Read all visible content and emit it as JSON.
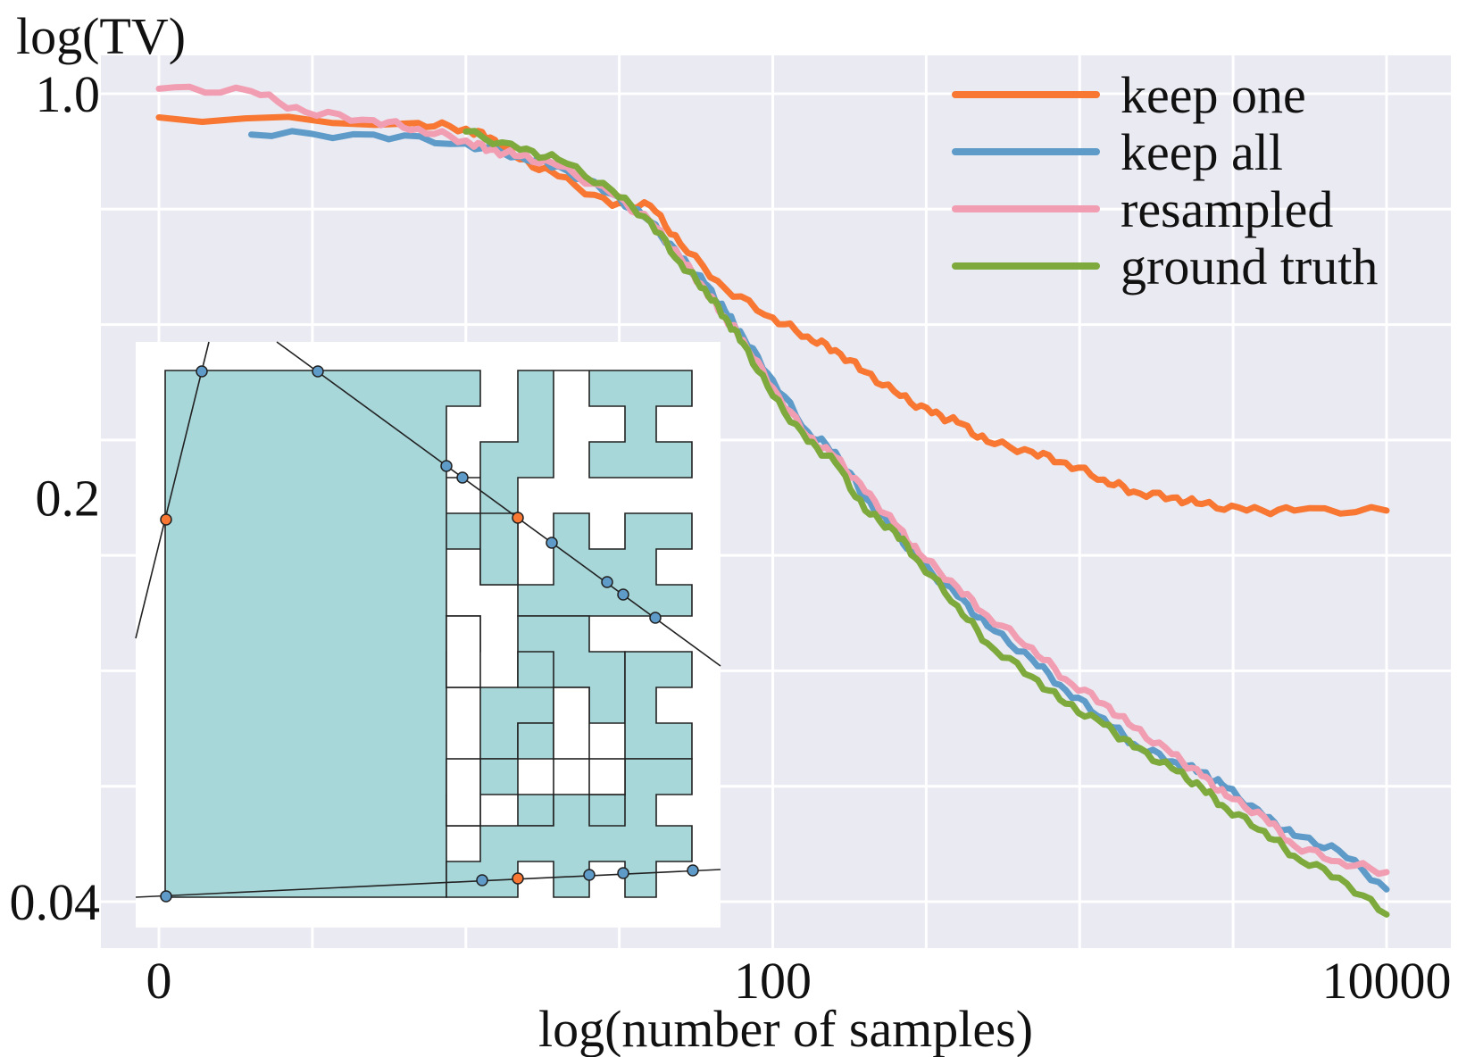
{
  "chart_data": {
    "type": "line",
    "ylabel": "log(TV)",
    "xlabel": "log(number of samples)",
    "x_scale": "log",
    "y_scale": "log",
    "xlim": [
      1,
      10000
    ],
    "ylim": [
      0.033,
      1.25
    ],
    "x_ticks": [
      {
        "value": 1,
        "label": "0"
      },
      {
        "value": 100,
        "label": "100"
      },
      {
        "value": 10000,
        "label": "10000"
      }
    ],
    "y_ticks": [
      {
        "value": 1.0,
        "label": "1.0"
      },
      {
        "value": 0.2,
        "label": "0.2"
      },
      {
        "value": 0.04,
        "label": "0.04"
      }
    ],
    "legend_position": "top-right",
    "series": [
      {
        "name": "keep one",
        "color": "#f77733",
        "points": [
          [
            1,
            0.91
          ],
          [
            7,
            0.89
          ],
          [
            10,
            0.87
          ],
          [
            12,
            0.84
          ],
          [
            15,
            0.77
          ],
          [
            20,
            0.72
          ],
          [
            30,
            0.64
          ],
          [
            40,
            0.64
          ],
          [
            50,
            0.55
          ],
          [
            70,
            0.46
          ],
          [
            100,
            0.41
          ],
          [
            130,
            0.38
          ],
          [
            160,
            0.36
          ],
          [
            200,
            0.33
          ],
          [
            260,
            0.3
          ],
          [
            330,
            0.28
          ],
          [
            400,
            0.27
          ],
          [
            500,
            0.25
          ],
          [
            700,
            0.24
          ],
          [
            900,
            0.23
          ],
          [
            1200,
            0.215
          ],
          [
            1500,
            0.205
          ],
          [
            2000,
            0.2
          ],
          [
            2500,
            0.195
          ],
          [
            3500,
            0.19
          ],
          [
            5000,
            0.19
          ],
          [
            10000,
            0.19
          ]
        ]
      },
      {
        "name": "keep all",
        "color": "#5e9bc9",
        "points": [
          [
            2,
            0.85
          ],
          [
            5,
            0.85
          ],
          [
            10,
            0.82
          ],
          [
            15,
            0.78
          ],
          [
            20,
            0.75
          ],
          [
            30,
            0.67
          ],
          [
            40,
            0.6
          ],
          [
            50,
            0.52
          ],
          [
            60,
            0.47
          ],
          [
            70,
            0.42
          ],
          [
            80,
            0.38
          ],
          [
            100,
            0.32
          ],
          [
            130,
            0.26
          ],
          [
            160,
            0.24
          ],
          [
            200,
            0.2
          ],
          [
            250,
            0.175
          ],
          [
            300,
            0.155
          ],
          [
            400,
            0.135
          ],
          [
            500,
            0.12
          ],
          [
            700,
            0.105
          ],
          [
            900,
            0.093
          ],
          [
            1200,
            0.083
          ],
          [
            1500,
            0.075
          ],
          [
            2000,
            0.07
          ],
          [
            2500,
            0.067
          ],
          [
            3000,
            0.063
          ],
          [
            4000,
            0.056
          ],
          [
            5000,
            0.052
          ],
          [
            7000,
            0.049
          ],
          [
            10000,
            0.042
          ]
        ]
      },
      {
        "name": "resampled",
        "color": "#f29eb2",
        "points": [
          [
            1,
            1.02
          ],
          [
            2,
            1.01
          ],
          [
            3,
            0.93
          ],
          [
            5,
            0.9
          ],
          [
            7,
            0.87
          ],
          [
            10,
            0.83
          ],
          [
            12,
            0.8
          ],
          [
            15,
            0.78
          ],
          [
            20,
            0.75
          ],
          [
            30,
            0.67
          ],
          [
            40,
            0.6
          ],
          [
            50,
            0.52
          ],
          [
            60,
            0.46
          ],
          [
            70,
            0.41
          ],
          [
            80,
            0.375
          ],
          [
            100,
            0.31
          ],
          [
            130,
            0.255
          ],
          [
            160,
            0.235
          ],
          [
            200,
            0.205
          ],
          [
            250,
            0.18
          ],
          [
            300,
            0.16
          ],
          [
            400,
            0.14
          ],
          [
            500,
            0.125
          ],
          [
            700,
            0.11
          ],
          [
            900,
            0.097
          ],
          [
            1200,
            0.088
          ],
          [
            1500,
            0.08
          ],
          [
            2000,
            0.072
          ],
          [
            2500,
            0.066
          ],
          [
            3000,
            0.061
          ],
          [
            4000,
            0.056
          ],
          [
            5000,
            0.05
          ],
          [
            7000,
            0.047
          ],
          [
            10000,
            0.045
          ]
        ]
      },
      {
        "name": "ground truth",
        "color": "#7eaa3d",
        "points": [
          [
            10,
            0.86
          ],
          [
            15,
            0.8
          ],
          [
            20,
            0.77
          ],
          [
            30,
            0.68
          ],
          [
            40,
            0.6
          ],
          [
            50,
            0.51
          ],
          [
            60,
            0.46
          ],
          [
            70,
            0.41
          ],
          [
            80,
            0.37
          ],
          [
            100,
            0.3
          ],
          [
            130,
            0.25
          ],
          [
            160,
            0.23
          ],
          [
            200,
            0.19
          ],
          [
            250,
            0.175
          ],
          [
            300,
            0.155
          ],
          [
            400,
            0.13
          ],
          [
            500,
            0.112
          ],
          [
            700,
            0.098
          ],
          [
            900,
            0.088
          ],
          [
            1200,
            0.081
          ],
          [
            1500,
            0.074
          ],
          [
            2000,
            0.068
          ],
          [
            2500,
            0.063
          ],
          [
            3000,
            0.058
          ],
          [
            4000,
            0.053
          ],
          [
            5000,
            0.048
          ],
          [
            7000,
            0.044
          ],
          [
            10000,
            0.038
          ]
        ]
      }
    ]
  },
  "inset": {
    "description_color_fill": "#a8d7da",
    "point_blue": "#5e9bc9",
    "point_orange": "#f77733"
  }
}
